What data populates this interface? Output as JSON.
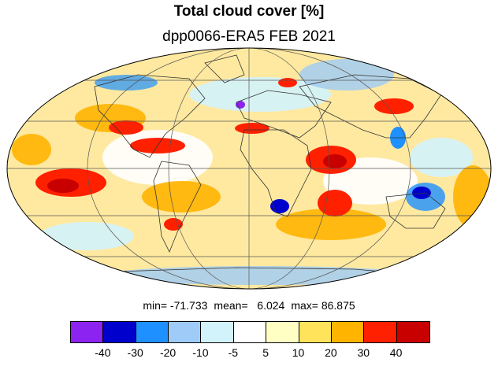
{
  "title": "Total cloud cover [%]",
  "subtitle": "dpp0066-ERA5 FEB 2021",
  "stats": {
    "min": "min= -71.733",
    "mean": "mean=   6.024",
    "max": "max= 86.875"
  },
  "colorbar": {
    "colors": [
      "#8d23f0",
      "#0000cd",
      "#1e90ff",
      "#9ecbf7",
      "#d3f3fc",
      "#ffffff",
      "#ffffc4",
      "#ffe35b",
      "#ffb400",
      "#ff2000",
      "#c80000"
    ],
    "ticks": [
      "-40",
      "-30",
      "-20",
      "-10",
      "-5",
      "5",
      "10",
      "20",
      "30",
      "40"
    ]
  },
  "map": {
    "projection": "mollweide",
    "grid": true
  }
}
